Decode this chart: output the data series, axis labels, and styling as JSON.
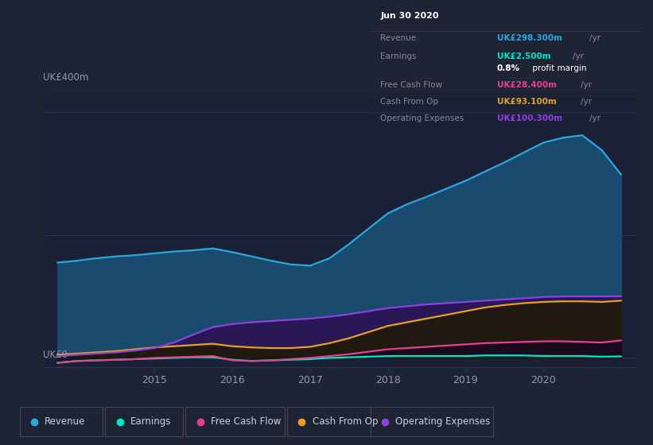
{
  "background_color": "#1e2433",
  "plot_bg_color": "#1a2035",
  "grid_color": "#2d3550",
  "text_color": "#9099b0",
  "ylabel": "UK£400m",
  "ylabel0": "UK£0",
  "xlim": [
    2013.6,
    2021.2
  ],
  "ylim": [
    -15,
    430
  ],
  "xticks": [
    2015,
    2016,
    2017,
    2018,
    2019,
    2020
  ],
  "years": [
    2013.75,
    2014.0,
    2014.25,
    2014.5,
    2014.75,
    2015.0,
    2015.25,
    2015.5,
    2015.75,
    2016.0,
    2016.25,
    2016.5,
    2016.75,
    2017.0,
    2017.25,
    2017.5,
    2017.75,
    2018.0,
    2018.25,
    2018.5,
    2018.75,
    2019.0,
    2019.25,
    2019.5,
    2019.75,
    2020.0,
    2020.25,
    2020.5,
    2020.75,
    2021.0
  ],
  "revenue": [
    155,
    158,
    162,
    165,
    167,
    170,
    173,
    175,
    178,
    172,
    165,
    158,
    152,
    150,
    162,
    185,
    210,
    235,
    250,
    262,
    275,
    288,
    303,
    318,
    334,
    350,
    358,
    362,
    338,
    298
  ],
  "earnings": [
    -8,
    -5,
    -4,
    -3,
    -2,
    -1,
    0,
    1,
    1,
    -3,
    -5,
    -4,
    -3,
    -2,
    0,
    1,
    2,
    3,
    3,
    3,
    3,
    3,
    4,
    4,
    4,
    3,
    3,
    3,
    2,
    2.5
  ],
  "free_cash_flow": [
    -8,
    -5,
    -4,
    -3,
    -2,
    0,
    1,
    2,
    3,
    -4,
    -5,
    -4,
    -2,
    0,
    3,
    6,
    10,
    14,
    16,
    18,
    20,
    22,
    24,
    25,
    26,
    27,
    27,
    26,
    25,
    28.4
  ],
  "cash_from_op": [
    5,
    7,
    9,
    11,
    14,
    17,
    19,
    21,
    23,
    19,
    17,
    16,
    16,
    18,
    24,
    32,
    42,
    52,
    58,
    64,
    70,
    76,
    82,
    86,
    89,
    91,
    92,
    92,
    91,
    93.1
  ],
  "operating_expenses": [
    3,
    5,
    7,
    9,
    12,
    16,
    25,
    38,
    50,
    55,
    58,
    60,
    62,
    64,
    67,
    71,
    76,
    81,
    84,
    87,
    89,
    91,
    93,
    95,
    97,
    99,
    100,
    100,
    100,
    100.3
  ],
  "revenue_color": "#29a8e0",
  "earnings_color": "#00e8c8",
  "free_cash_flow_color": "#e84090",
  "cash_from_op_color": "#e8a020",
  "operating_expenses_color": "#9040e0",
  "info_box": {
    "title": "Jun 30 2020",
    "rows": [
      {
        "label": "Revenue",
        "value": "UK£298.300m",
        "color": "#29a8e0"
      },
      {
        "label": "Earnings",
        "value": "UK£2.500m",
        "color": "#00e8c8"
      },
      {
        "label": "",
        "value": "0.8% profit margin",
        "color": "#ffffff"
      },
      {
        "label": "Free Cash Flow",
        "value": "UK£28.400m",
        "color": "#e84090"
      },
      {
        "label": "Cash From Op",
        "value": "UK£93.100m",
        "color": "#e8a020"
      },
      {
        "label": "Operating Expenses",
        "value": "UK£100.300m",
        "color": "#9040e0"
      }
    ]
  },
  "legend": [
    {
      "label": "Revenue",
      "color": "#29a8e0"
    },
    {
      "label": "Earnings",
      "color": "#00e8c8"
    },
    {
      "label": "Free Cash Flow",
      "color": "#e84090"
    },
    {
      "label": "Cash From Op",
      "color": "#e8a020"
    },
    {
      "label": "Operating Expenses",
      "color": "#9040e0"
    }
  ]
}
